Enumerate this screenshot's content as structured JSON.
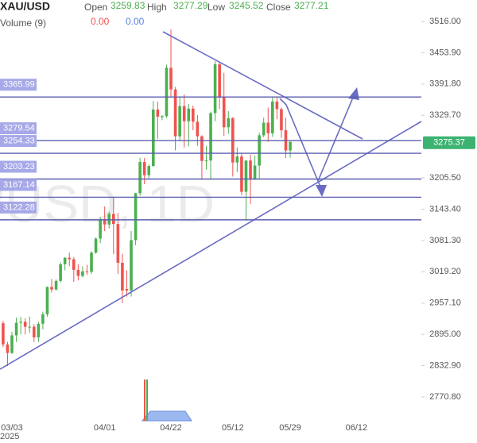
{
  "chart_data": {
    "type": "candlestick",
    "title": "XAU/USD",
    "header": {
      "open_label": "Open",
      "open": 3259.83,
      "high_label": "High",
      "high": 3277.29,
      "low_label": "Low",
      "low": 3245.52,
      "close_label": "Close",
      "close": 3277.21
    },
    "volume_label": "Volume (9)",
    "volume_values": [
      "0.00",
      "0.00"
    ],
    "watermark": "XAU/USD, 1D",
    "year_label": "2025",
    "categories": [
      null,
      null,
      "03/03",
      null,
      null,
      null,
      null,
      null,
      null,
      null,
      null,
      null,
      null,
      null,
      null,
      null,
      null,
      null,
      null,
      null,
      null,
      null,
      null,
      "04/01",
      null,
      null,
      null,
      null,
      null,
      null,
      null,
      null,
      null,
      null,
      null,
      null,
      null,
      null,
      "04/22",
      null,
      null,
      null,
      null,
      null,
      null,
      null,
      null,
      null,
      null,
      null,
      null,
      null,
      "05/12",
      null,
      null,
      null,
      null,
      null,
      null,
      null,
      null,
      null,
      null,
      null,
      null,
      "05/29",
      null,
      null,
      null,
      null,
      null,
      null,
      null,
      null,
      null,
      null,
      null,
      null,
      null,
      null,
      "06/12"
    ],
    "open": [
      2917,
      2875,
      2858,
      2893,
      2918,
      2920,
      2910,
      2910,
      2889,
      2916,
      2935,
      2989,
      2984,
      3001,
      3034,
      3047,
      3044,
      3023,
      3011,
      3020,
      3019,
      3057,
      3085,
      3123,
      3113,
      3134,
      3114,
      3037,
      2985,
      2982,
      3082,
      3175,
      3237,
      3211,
      3229,
      3341,
      3326,
      3328,
      3424,
      3381,
      3288,
      3348,
      3318,
      3343,
      3317,
      3288,
      3239,
      3240,
      3334,
      3431,
      3365,
      3306,
      3324,
      3236,
      3248,
      3178,
      3240,
      3202,
      3230,
      3290,
      3315,
      3294,
      3357,
      3342,
      3300,
      3259.83,
      null,
      null,
      null,
      null,
      null,
      null,
      null,
      null,
      null,
      null,
      null,
      null,
      null,
      null,
      null
    ],
    "high": [
      2922,
      2880,
      2900,
      2928,
      2930,
      2927,
      2930,
      2915,
      2920,
      2940,
      2990,
      3005,
      3004,
      3038,
      3048,
      3057,
      3048,
      3034,
      3030,
      3033,
      3060,
      3087,
      3128,
      3149,
      3138,
      3168,
      3136,
      3055,
      3022,
      3100,
      3176,
      3245,
      3245,
      3232,
      3358,
      3357,
      3330,
      3430,
      3500,
      3386,
      3367,
      3371,
      3352,
      3349,
      3330,
      3290,
      3269,
      3337,
      3437,
      3435,
      3414,
      3338,
      3326,
      3266,
      3254,
      3240,
      3252,
      3250,
      3295,
      3325,
      3345,
      3366,
      3365,
      3345,
      3325,
      3277.29,
      null,
      null,
      null,
      null,
      null,
      null,
      null,
      null,
      null,
      null,
      null,
      null,
      null,
      null,
      null
    ],
    "low": [
      2870,
      2832,
      2856,
      2880,
      2895,
      2895,
      2898,
      2880,
      2880,
      2905,
      2930,
      2978,
      2982,
      2998,
      3022,
      3030,
      2999,
      3002,
      3008,
      3013,
      3015,
      3055,
      3076,
      3100,
      3105,
      3054,
      3015,
      2957,
      2970,
      2970,
      3072,
      3170,
      3193,
      3205,
      3228,
      3283,
      3320,
      3325,
      3367,
      3260,
      3280,
      3266,
      3268,
      3300,
      3269,
      3202,
      3222,
      3204,
      3318,
      3342,
      3289,
      3293,
      3208,
      3217,
      3171,
      3121,
      3154,
      3202,
      3204,
      3286,
      3277,
      3287,
      3322,
      3285,
      3245,
      3245.52,
      null,
      null,
      null,
      null,
      null,
      null,
      null,
      null,
      null,
      null,
      null,
      null,
      null,
      null,
      null
    ],
    "close": [
      2875,
      2858,
      2893,
      2918,
      2920,
      2910,
      2910,
      2889,
      2916,
      2935,
      2989,
      2984,
      3001,
      3034,
      3047,
      3044,
      3023,
      3011,
      3020,
      3019,
      3057,
      3085,
      3123,
      3113,
      3134,
      3114,
      3037,
      2982,
      2982,
      3082,
      3175,
      3237,
      3211,
      3229,
      3341,
      3327,
      3328,
      3424,
      3381,
      3288,
      3348,
      3318,
      3343,
      3317,
      3288,
      3239,
      3240,
      3334,
      3431,
      3365,
      3306,
      3324,
      3236,
      3248,
      3178,
      3240,
      3202,
      3230,
      3290,
      3315,
      3294,
      3357,
      3342,
      3300,
      3259.83,
      3277.21,
      null,
      null,
      null,
      null,
      null,
      null,
      null,
      null,
      null,
      null,
      null,
      null,
      null,
      null,
      null
    ],
    "up_color": "#4caf50",
    "down_color": "#ef5350",
    "ylim": [
      2723.5,
      3558.5
    ],
    "yticks": [
      {
        "value": 3516,
        "label": "3516.00"
      },
      {
        "value": 3453.9,
        "label": "3453.90"
      },
      {
        "value": 3391.8,
        "label": "3391.80"
      },
      {
        "value": 3329.7,
        "label": "3329.70"
      },
      {
        "value": 3205.5,
        "label": "3205.50"
      },
      {
        "value": 3143.4,
        "label": "3143.40"
      },
      {
        "value": 3081.3,
        "label": "3081.30"
      },
      {
        "value": 3019.2,
        "label": "3019.20"
      },
      {
        "value": 2957.1,
        "label": "2957.10"
      },
      {
        "value": 2895,
        "label": "2895.00"
      },
      {
        "value": 2832.9,
        "label": "2832.90"
      },
      {
        "value": 2770.8,
        "label": "2770.80"
      }
    ],
    "levels": [
      3365.99,
      3279.54,
      3254.33,
      3203.23,
      3167.14,
      3122.28
    ],
    "level_color": "#5b5fb0",
    "last_price": 3275.37,
    "last_price_color": "#3cb371"
  }
}
